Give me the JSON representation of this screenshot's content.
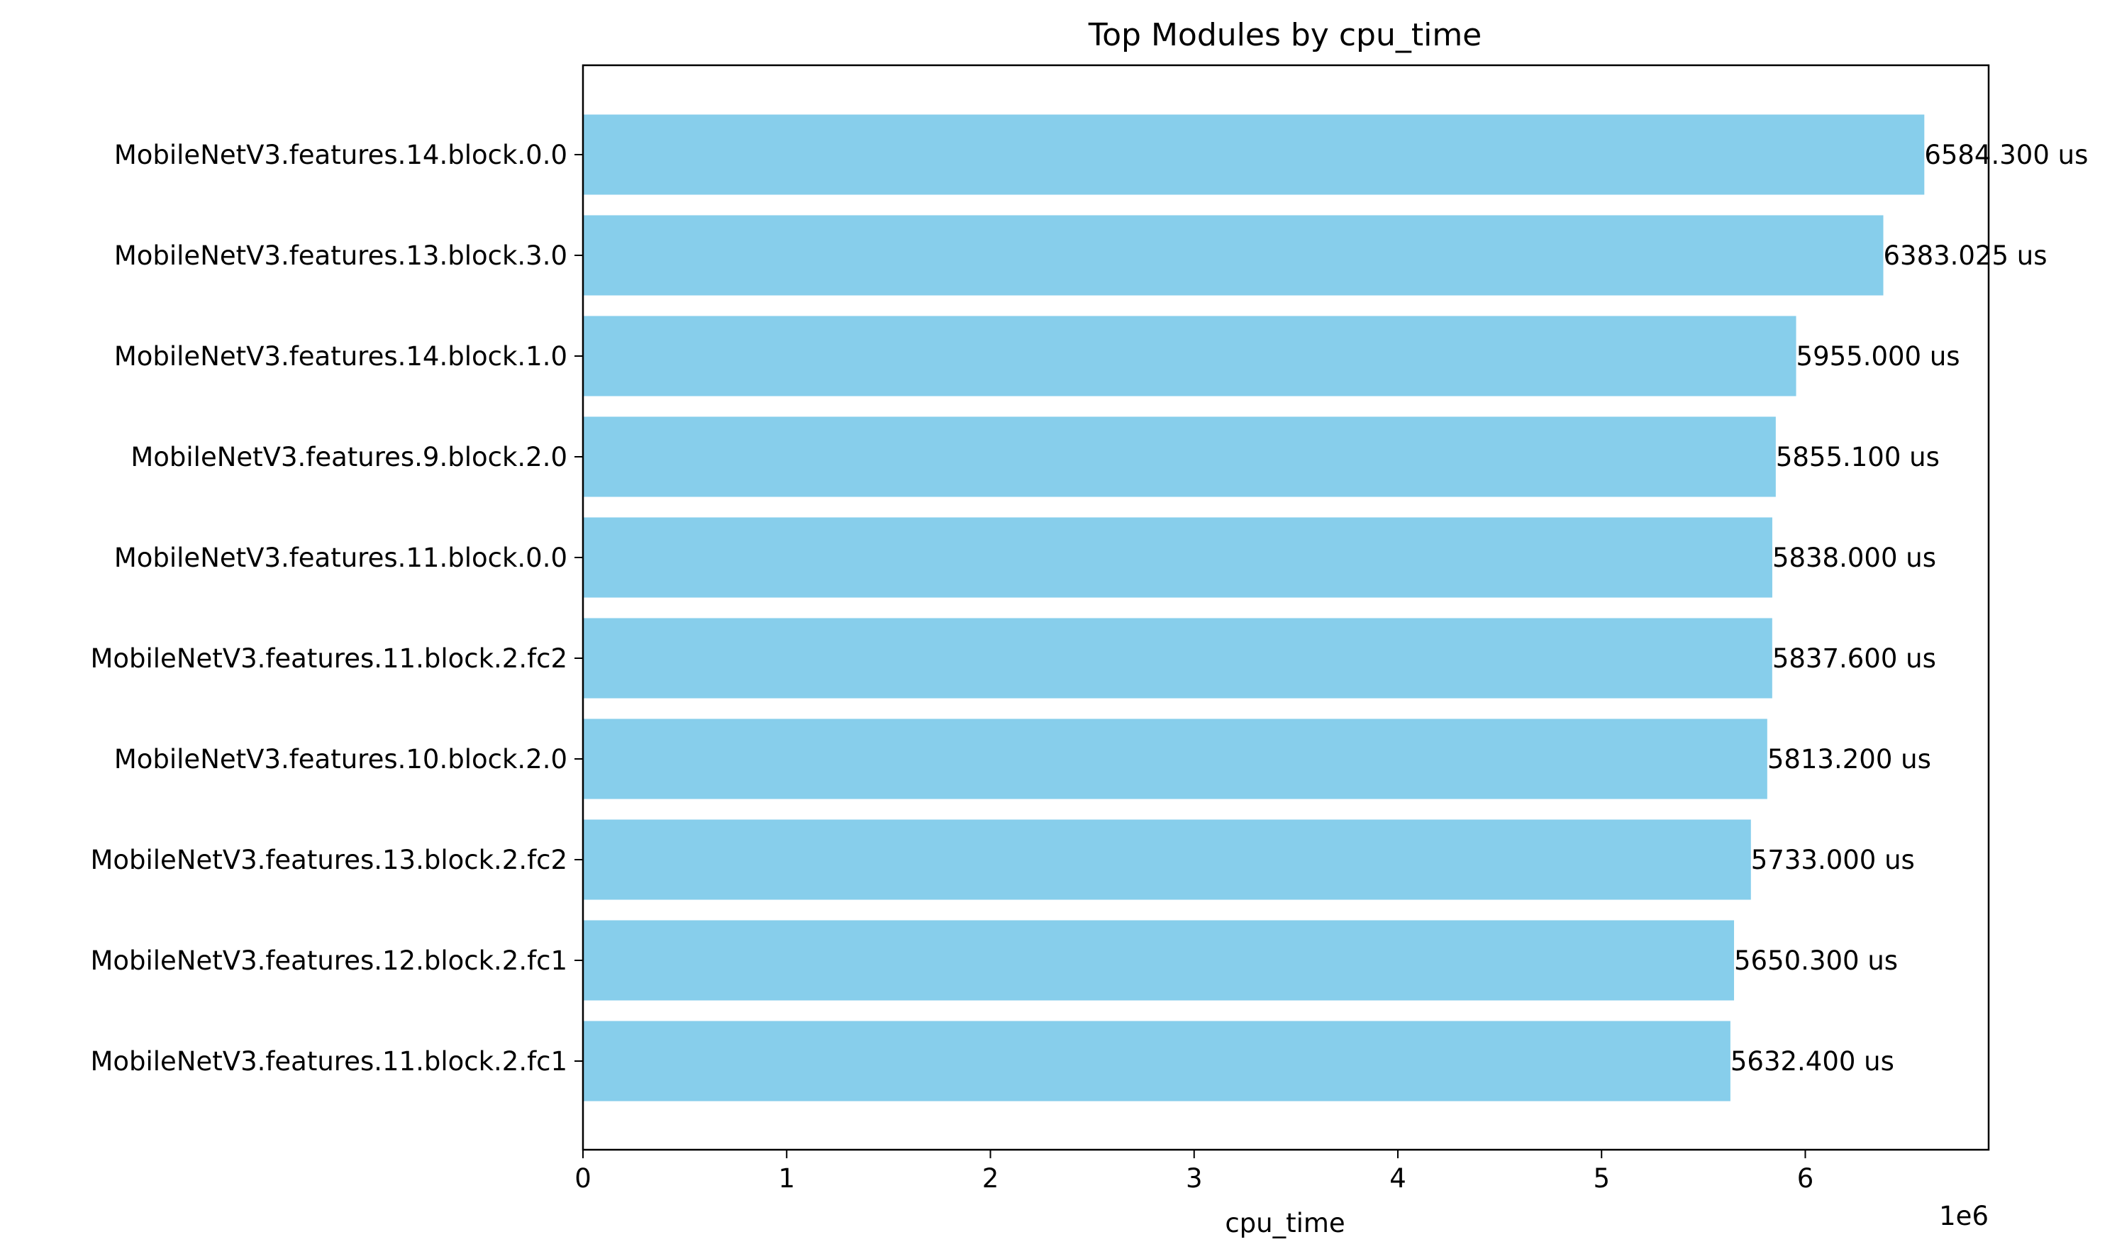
{
  "chart_data": {
    "type": "bar",
    "orientation": "horizontal",
    "title": "Top Modules by cpu_time",
    "xlabel": "cpu_time",
    "ylabel": "",
    "x_offset_text": "1e6",
    "xlim": [
      0,
      6.9
    ],
    "x_scale_factor": 1000000,
    "xticks": [
      0,
      1,
      2,
      3,
      4,
      5,
      6
    ],
    "grid": false,
    "bar_color": "#87CEEB",
    "categories": [
      "MobileNetV3.features.14.block.0.0",
      "MobileNetV3.features.13.block.3.0",
      "MobileNetV3.features.14.block.1.0",
      "MobileNetV3.features.9.block.2.0",
      "MobileNetV3.features.11.block.0.0",
      "MobileNetV3.features.11.block.2.fc2",
      "MobileNetV3.features.10.block.2.0",
      "MobileNetV3.features.13.block.2.fc2",
      "MobileNetV3.features.12.block.2.fc1",
      "MobileNetV3.features.11.block.2.fc1"
    ],
    "values": [
      6584300,
      6383025,
      5955000,
      5855100,
      5838000,
      5837600,
      5813200,
      5733000,
      5650300,
      5632400
    ],
    "data_labels": [
      "6584.300 us",
      "6383.025 us",
      "5955.000 us",
      "5855.100 us",
      "5838.000 us",
      "5837.600 us",
      "5813.200 us",
      "5733.000 us",
      "5650.300 us",
      "5632.400 us"
    ]
  }
}
